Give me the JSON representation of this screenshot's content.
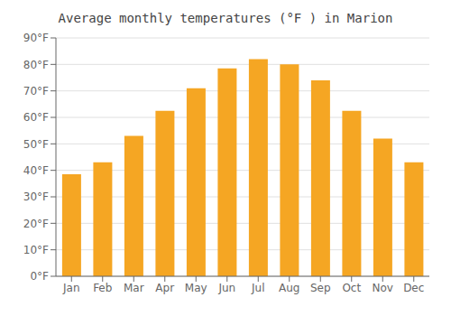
{
  "chart_data": {
    "type": "bar",
    "title": "Average monthly temperatures (°F ) in Marion",
    "categories": [
      "Jan",
      "Feb",
      "Mar",
      "Apr",
      "May",
      "Jun",
      "Jul",
      "Aug",
      "Sep",
      "Oct",
      "Nov",
      "Dec"
    ],
    "values": [
      38.5,
      43.0,
      53.0,
      62.5,
      71.0,
      78.5,
      82.0,
      80.0,
      74.0,
      62.5,
      52.0,
      43.0
    ],
    "color": "#F5A623",
    "ylim": [
      0,
      90
    ],
    "yticks": [
      {
        "value": 0,
        "label": "0°F"
      },
      {
        "value": 10,
        "label": "10°F"
      },
      {
        "value": 20,
        "label": "20°F"
      },
      {
        "value": 30,
        "label": "30°F"
      },
      {
        "value": 40,
        "label": "40°F"
      },
      {
        "value": 50,
        "label": "50°F"
      },
      {
        "value": 60,
        "label": "60°F"
      },
      {
        "value": 70,
        "label": "70°F"
      },
      {
        "value": 80,
        "label": "80°F"
      },
      {
        "value": 90,
        "label": "90°F"
      }
    ],
    "grid": true
  }
}
